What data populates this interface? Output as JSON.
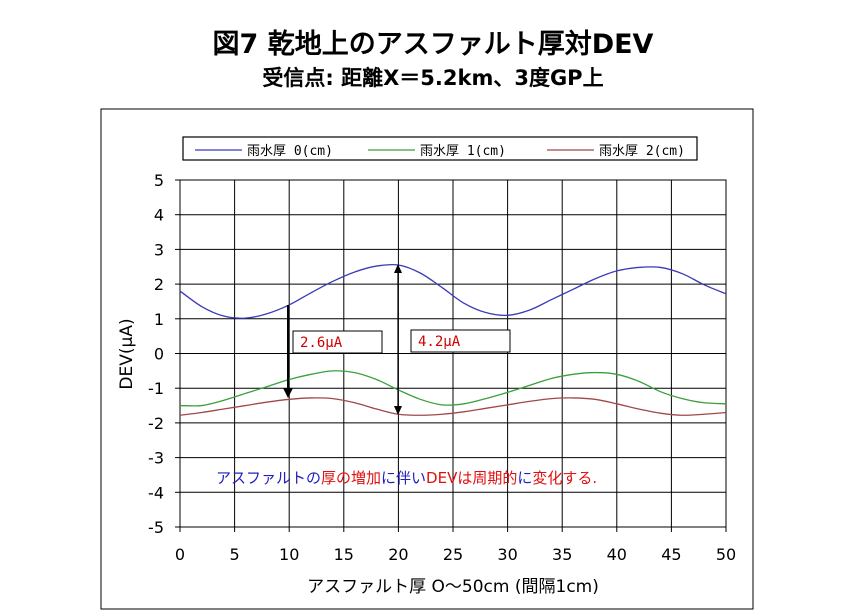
{
  "title": "図7  乾地上のアスファルト厚対DEV",
  "subtitle": "受信点: 距離X＝5.2km、3度GP上",
  "chart_data": {
    "type": "line",
    "xlabel": "アスファルト厚  O～50cm  (間隔1cm)",
    "ylabel": "DEV(μA)",
    "xlim": [
      0,
      50
    ],
    "ylim": [
      -5,
      5
    ],
    "x_ticks": [
      "0",
      "5",
      "10",
      "15",
      "20",
      "25",
      "30",
      "35",
      "40",
      "45",
      "50"
    ],
    "y_ticks": [
      "5",
      "4",
      "3",
      "2",
      "1",
      "0",
      "-1",
      "-2",
      "-3",
      "-4",
      "-5"
    ],
    "grid": true,
    "legend_position": "top",
    "x": [
      0,
      2,
      4,
      6,
      8,
      10,
      12,
      14,
      16,
      18,
      20,
      22,
      24,
      26,
      28,
      30,
      32,
      34,
      36,
      38,
      40,
      42,
      44,
      46,
      48,
      50
    ],
    "series": [
      {
        "name": "雨水厚 0(cm)",
        "color": "#3a3ab8",
        "values": [
          1.8,
          1.35,
          1.08,
          1.02,
          1.15,
          1.4,
          1.75,
          2.08,
          2.35,
          2.52,
          2.55,
          2.32,
          1.9,
          1.45,
          1.18,
          1.1,
          1.25,
          1.55,
          1.85,
          2.15,
          2.38,
          2.48,
          2.48,
          2.3,
          1.98,
          1.72
        ]
      },
      {
        "name": "雨水厚 1(cm)",
        "color": "#3aa03a",
        "values": [
          -1.5,
          -1.5,
          -1.35,
          -1.15,
          -0.95,
          -0.75,
          -0.6,
          -0.5,
          -0.55,
          -0.75,
          -1.05,
          -1.32,
          -1.48,
          -1.45,
          -1.3,
          -1.12,
          -0.92,
          -0.72,
          -0.6,
          -0.55,
          -0.6,
          -0.8,
          -1.1,
          -1.3,
          -1.42,
          -1.45
        ]
      },
      {
        "name": "雨水厚 2(cm)",
        "color": "#a04848",
        "values": [
          -1.78,
          -1.7,
          -1.6,
          -1.5,
          -1.4,
          -1.32,
          -1.28,
          -1.3,
          -1.42,
          -1.6,
          -1.75,
          -1.78,
          -1.75,
          -1.68,
          -1.58,
          -1.48,
          -1.38,
          -1.3,
          -1.28,
          -1.32,
          -1.45,
          -1.6,
          -1.72,
          -1.78,
          -1.75,
          -1.7
        ]
      }
    ],
    "annotations": [
      {
        "text": "2.6μA"
      },
      {
        "text": "4.2μA"
      }
    ],
    "note": {
      "parts": [
        {
          "text": "アスファルトの",
          "color": "#2020c0"
        },
        {
          "text": "厚の増加",
          "color": "#e01010"
        },
        {
          "text": "に伴い",
          "color": "#2020c0"
        },
        {
          "text": "DEVは周期的",
          "color": "#e01010"
        },
        {
          "text": "に",
          "color": "#2020c0"
        },
        {
          "text": "変化する.",
          "color": "#e01010"
        }
      ]
    }
  }
}
